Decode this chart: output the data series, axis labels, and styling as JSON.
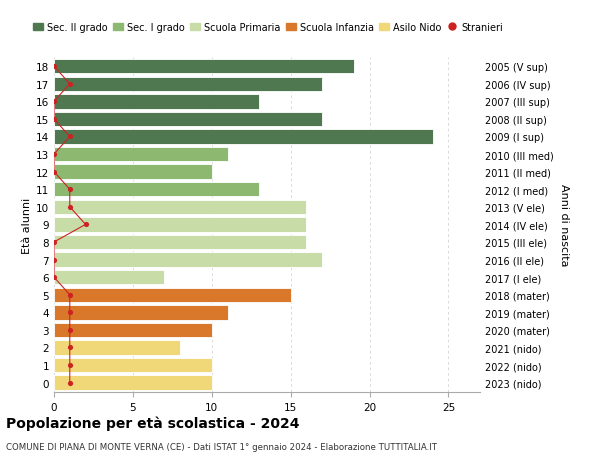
{
  "ages": [
    18,
    17,
    16,
    15,
    14,
    13,
    12,
    11,
    10,
    9,
    8,
    7,
    6,
    5,
    4,
    3,
    2,
    1,
    0
  ],
  "right_labels": [
    "2005 (V sup)",
    "2006 (IV sup)",
    "2007 (III sup)",
    "2008 (II sup)",
    "2009 (I sup)",
    "2010 (III med)",
    "2011 (II med)",
    "2012 (I med)",
    "2013 (V ele)",
    "2014 (IV ele)",
    "2015 (III ele)",
    "2016 (II ele)",
    "2017 (I ele)",
    "2018 (mater)",
    "2019 (mater)",
    "2020 (mater)",
    "2021 (nido)",
    "2022 (nido)",
    "2023 (nido)"
  ],
  "bar_values": [
    19,
    17,
    13,
    17,
    24,
    11,
    10,
    13,
    16,
    16,
    16,
    17,
    7,
    15,
    11,
    10,
    8,
    10,
    10
  ],
  "bar_colors": [
    "#507850",
    "#507850",
    "#507850",
    "#507850",
    "#507850",
    "#8db870",
    "#8db870",
    "#8db870",
    "#c8dca8",
    "#c8dca8",
    "#c8dca8",
    "#c8dca8",
    "#c8dca8",
    "#d9782a",
    "#d9782a",
    "#d9782a",
    "#f0d878",
    "#f0d878",
    "#f0d878"
  ],
  "stranieri_values": [
    0,
    1,
    0,
    0,
    1,
    0,
    0,
    1,
    1,
    2,
    0,
    0,
    0,
    1,
    1,
    1,
    1,
    1,
    1
  ],
  "legend_labels": [
    "Sec. II grado",
    "Sec. I grado",
    "Scuola Primaria",
    "Scuola Infanzia",
    "Asilo Nido",
    "Stranieri"
  ],
  "legend_colors": [
    "#507850",
    "#8db870",
    "#c8dca8",
    "#d9782a",
    "#f0d878",
    "#cc2222"
  ],
  "title": "Popolazione per età scolastica - 2024",
  "subtitle": "COMUNE DI PIANA DI MONTE VERNA (CE) - Dati ISTAT 1° gennaio 2024 - Elaborazione TUTTITALIA.IT",
  "ylabel_left": "Età alunni",
  "ylabel_right": "Anni di nascita",
  "xlim": [
    0,
    27
  ],
  "xticks": [
    0,
    5,
    10,
    15,
    20,
    25
  ],
  "background_color": "#ffffff",
  "grid_color": "#cccccc",
  "bar_height": 0.82
}
